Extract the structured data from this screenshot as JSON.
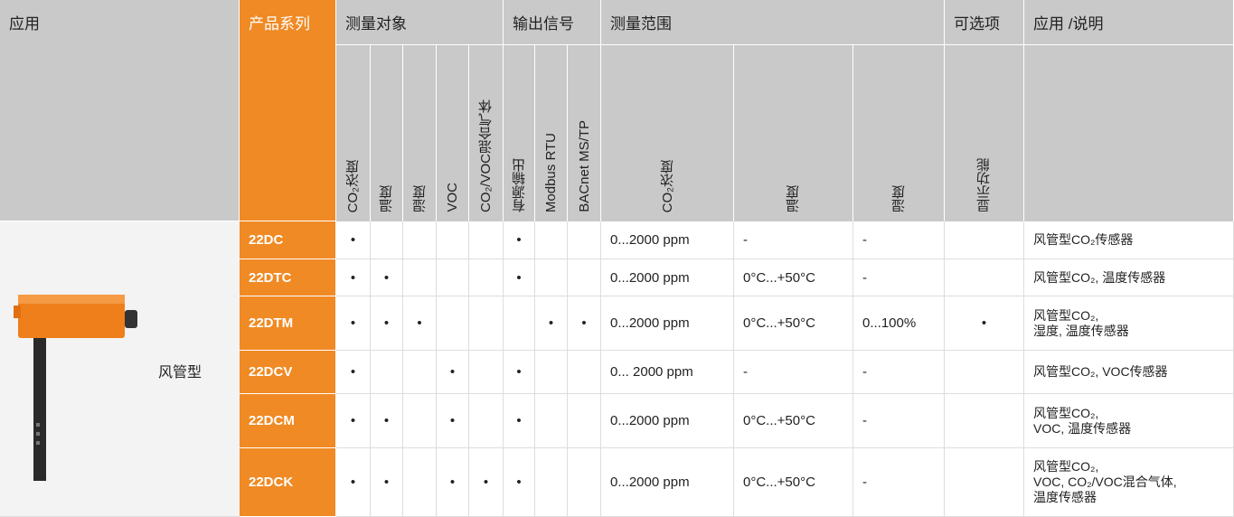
{
  "header": {
    "groups": [
      "应用",
      "产品系列",
      "测量对象",
      "输出信号",
      "测量范围",
      "可选项",
      "应用 /说明"
    ],
    "subheaders": [
      "CO₂浓度",
      "温度",
      "湿度",
      "VOC",
      "CO₂/VOC混合气体",
      "有源输出",
      "Modbus RTU",
      "BACnet MS/TP",
      "CO₂浓度",
      "温度",
      "湿度",
      "显示功能"
    ]
  },
  "table": {
    "application": "风管型",
    "rows": [
      {
        "product": "22DC",
        "cells": [
          "•",
          null,
          null,
          null,
          null,
          "•",
          null,
          null,
          "0...2000 ppm",
          "-",
          "-",
          null
        ],
        "description": [
          "风管型CO₂传感器"
        ]
      },
      {
        "product": "22DTC",
        "cells": [
          "•",
          "•",
          null,
          null,
          null,
          "•",
          null,
          null,
          "0...2000 ppm",
          "0°C...+50°C",
          "-",
          null
        ],
        "description": [
          "风管型CO₂, 温度传感器"
        ]
      },
      {
        "product": "22DTM",
        "cells": [
          "•",
          "•",
          "•",
          null,
          null,
          null,
          "•",
          "•",
          "0...2000 ppm",
          "0°C...+50°C",
          "0...100%",
          "•"
        ],
        "description": [
          "风管型CO₂,",
          "湿度, 温度传感器"
        ]
      },
      {
        "product": "22DCV",
        "cells": [
          "•",
          null,
          null,
          "•",
          null,
          "•",
          null,
          null,
          "0... 2000 ppm",
          "-",
          "-",
          null
        ],
        "description": [
          "风管型CO₂, VOC传感器"
        ]
      },
      {
        "product": "22DCM",
        "cells": [
          "•",
          "•",
          null,
          "•",
          null,
          "•",
          null,
          null,
          "0...2000 ppm",
          "0°C...+50°C",
          "-",
          null
        ],
        "description": [
          "风管型CO₂,",
          "VOC, 温度传感器"
        ]
      },
      {
        "product": "22DCK",
        "cells": [
          "•",
          "•",
          null,
          "•",
          "•",
          "•",
          null,
          null,
          "0...2000 ppm",
          "0°C...+50°C",
          "-",
          null
        ],
        "description": [
          "风管型CO₂,",
          "VOC, CO₂/VOC混合气体,",
          "温度传感器"
        ]
      }
    ]
  }
}
